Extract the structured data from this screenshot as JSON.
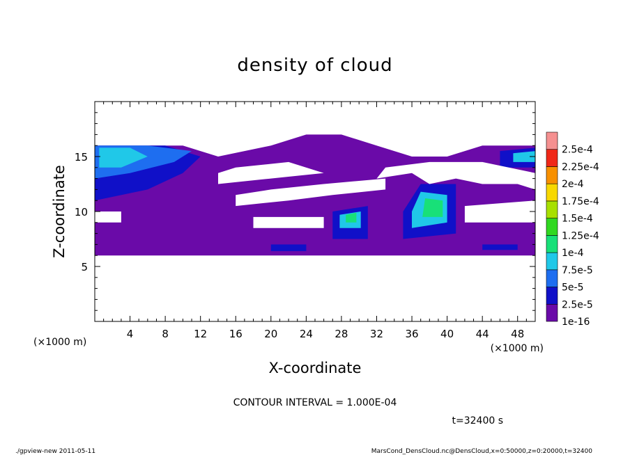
{
  "chart_data": {
    "type": "heatmap",
    "title": "density of cloud",
    "xlabel": "X-coordinate",
    "ylabel": "Z-coordinate",
    "x_unit": "(×1000 m)",
    "y_unit": "(×1000 m)",
    "xlim": [
      0,
      50
    ],
    "ylim": [
      0,
      20
    ],
    "x_ticks": [
      4,
      8,
      12,
      16,
      20,
      24,
      28,
      32,
      36,
      40,
      44,
      48
    ],
    "y_ticks": [
      5,
      10,
      15
    ],
    "x_tick_labels": [
      "4",
      "8",
      "12",
      "16",
      "20",
      "24",
      "28",
      "32",
      "36",
      "40",
      "44",
      "48"
    ],
    "y_tick_labels": [
      "5",
      "10",
      "15"
    ],
    "colorbar": {
      "labels": [
        "1e-16",
        "2.5e-5",
        "5e-5",
        "7.5e-5",
        "1e-4",
        "1.25e-4",
        "1.5e-4",
        "1.75e-4",
        "2e-4",
        "2.25e-4",
        "2.5e-4"
      ],
      "colors": [
        "#6a0aa8",
        "#1010c8",
        "#1e6ef0",
        "#20c8e8",
        "#18e078",
        "#30d820",
        "#a8e000",
        "#f8d800",
        "#f89000",
        "#f02818",
        "#f59090"
      ]
    },
    "regions": [
      {
        "level": 0,
        "points": [
          [
            0,
            6
          ],
          [
            50,
            6
          ],
          [
            50,
            16
          ],
          [
            44,
            16
          ],
          [
            40,
            15
          ],
          [
            36,
            15
          ],
          [
            32,
            16
          ],
          [
            28,
            17
          ],
          [
            24,
            17
          ],
          [
            20,
            16
          ],
          [
            14,
            15
          ],
          [
            10,
            16
          ],
          [
            0,
            16
          ]
        ]
      },
      {
        "level": 1,
        "points": [
          [
            0,
            11
          ],
          [
            6,
            12
          ],
          [
            10,
            13.5
          ],
          [
            12,
            15
          ],
          [
            8,
            16
          ],
          [
            0,
            16
          ]
        ]
      },
      {
        "level": 2,
        "points": [
          [
            0,
            13
          ],
          [
            4,
            13.5
          ],
          [
            9,
            14.5
          ],
          [
            11,
            15.5
          ],
          [
            6,
            16
          ],
          [
            0,
            16
          ]
        ]
      },
      {
        "level": 3,
        "points": [
          [
            0.5,
            14
          ],
          [
            3,
            14
          ],
          [
            6,
            15
          ],
          [
            4,
            15.8
          ],
          [
            0.5,
            15.8
          ]
        ]
      },
      {
        "level": 1,
        "points": [
          [
            27,
            7.5
          ],
          [
            31,
            7.5
          ],
          [
            31,
            10.5
          ],
          [
            27,
            10
          ]
        ]
      },
      {
        "level": 3,
        "points": [
          [
            27.8,
            8.5
          ],
          [
            30.2,
            8.5
          ],
          [
            30.2,
            10
          ],
          [
            27.8,
            9.7
          ]
        ]
      },
      {
        "level": 4,
        "points": [
          [
            28.5,
            9
          ],
          [
            29.7,
            9
          ],
          [
            29.7,
            9.9
          ],
          [
            28.5,
            9.7
          ]
        ]
      },
      {
        "level": 1,
        "points": [
          [
            35,
            7.5
          ],
          [
            41,
            8
          ],
          [
            41,
            12.5
          ],
          [
            37,
            12.5
          ],
          [
            35,
            10
          ]
        ]
      },
      {
        "level": 3,
        "points": [
          [
            36,
            8.5
          ],
          [
            40,
            9
          ],
          [
            40,
            11.5
          ],
          [
            37,
            11.8
          ],
          [
            36,
            10
          ]
        ]
      },
      {
        "level": 4,
        "points": [
          [
            37.2,
            9.5
          ],
          [
            39.5,
            9.5
          ],
          [
            39.5,
            11
          ],
          [
            37.5,
            11.2
          ]
        ]
      },
      {
        "level": 1,
        "points": [
          [
            46,
            14
          ],
          [
            50,
            14
          ],
          [
            50,
            15.8
          ],
          [
            46,
            15.5
          ]
        ]
      },
      {
        "level": 3,
        "points": [
          [
            47.5,
            14.5
          ],
          [
            50,
            14.5
          ],
          [
            50,
            15.5
          ],
          [
            47.5,
            15.3
          ]
        ]
      },
      {
        "level": 1,
        "points": [
          [
            20,
            6.4
          ],
          [
            24,
            6.4
          ],
          [
            24,
            7
          ],
          [
            20,
            7
          ]
        ]
      },
      {
        "level": 1,
        "points": [
          [
            44,
            6.5
          ],
          [
            48,
            6.5
          ],
          [
            48,
            7
          ],
          [
            44,
            7
          ]
        ]
      }
    ],
    "gaps": [
      {
        "points": [
          [
            14,
            12.5
          ],
          [
            20,
            13
          ],
          [
            26,
            13.5
          ],
          [
            22,
            14.5
          ],
          [
            16,
            14
          ],
          [
            14,
            13.5
          ]
        ]
      },
      {
        "points": [
          [
            32,
            13
          ],
          [
            36,
            13.5
          ],
          [
            38,
            12.5
          ],
          [
            41,
            13
          ],
          [
            44,
            12.5
          ],
          [
            48,
            12.5
          ],
          [
            50,
            12
          ],
          [
            50,
            13.5
          ],
          [
            44,
            14.5
          ],
          [
            38,
            14.5
          ],
          [
            33,
            14
          ]
        ]
      },
      {
        "points": [
          [
            16,
            10.5
          ],
          [
            22,
            11
          ],
          [
            27,
            11.5
          ],
          [
            33,
            12
          ],
          [
            33,
            13
          ],
          [
            26,
            12.5
          ],
          [
            20,
            12
          ],
          [
            16,
            11.5
          ]
        ]
      },
      {
        "points": [
          [
            18,
            8.5
          ],
          [
            26,
            8.5
          ],
          [
            26,
            9.5
          ],
          [
            18,
            9.5
          ]
        ]
      },
      {
        "points": [
          [
            42,
            9
          ],
          [
            50,
            9
          ],
          [
            50,
            11
          ],
          [
            42,
            10.5
          ]
        ]
      },
      {
        "points": [
          [
            0,
            9
          ],
          [
            3,
            9
          ],
          [
            3,
            10
          ],
          [
            0,
            10
          ]
        ]
      }
    ]
  },
  "info": {
    "contour_interval": "CONTOUR INTERVAL = 1.000E-04",
    "time": "t=32400 s"
  },
  "footer": {
    "left": "./gpview-new  2011-05-11",
    "right": "MarsCond_DensCloud.nc@DensCloud,x=0:50000,z=0:20000,t=32400"
  }
}
